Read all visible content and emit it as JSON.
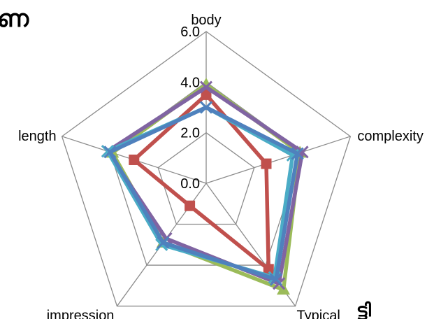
{
  "chart_data": {
    "type": "radar",
    "axes": [
      "body",
      "complexity",
      "Typical",
      "impression",
      "length"
    ],
    "tick_labels": [
      "0.0",
      "2.0",
      "4.0",
      "6.0"
    ],
    "rmax": 6.0,
    "series": [
      {
        "color": "#c0504d",
        "marker": "square",
        "values": [
          3.5,
          2.5,
          4.2,
          1.1,
          3.0
        ]
      },
      {
        "color": "#9bbb59",
        "marker": "triangle",
        "values": [
          3.9,
          3.9,
          5.2,
          2.9,
          3.9
        ]
      },
      {
        "color": "#8064a2",
        "marker": "x",
        "values": [
          3.8,
          4.0,
          4.9,
          2.7,
          4.1
        ]
      },
      {
        "color": "#4bacc6",
        "marker": "x",
        "values": [
          3.0,
          3.6,
          4.6,
          3.0,
          4.1
        ]
      },
      {
        "color": "#4f81bd",
        "marker": "x",
        "values": [
          3.0,
          3.8,
          4.7,
          2.9,
          4.0
        ]
      }
    ]
  },
  "corner_text": {
    "top_left": "ണ",
    "bottom_right": "ട്ടി"
  }
}
